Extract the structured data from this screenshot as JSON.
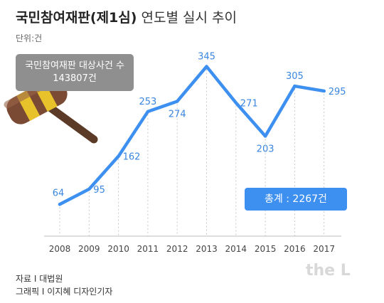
{
  "title": {
    "bold": "국민참여재판(제1심)",
    "light": "연도별 실시 추이"
  },
  "unit": "단위:건",
  "callout": {
    "line1": "국민참여재판 대상사건 수",
    "line2": "143807건"
  },
  "total": "총계 : 2267건",
  "source": {
    "line1": "자료 I 대법원",
    "line2": "그래픽 I 이지혜 디자인기자"
  },
  "watermark": "the L",
  "colors": {
    "line": "#3d8ff0",
    "label": "#3a86e0",
    "callout": "#8f8f8f"
  },
  "chart_data": {
    "type": "line",
    "categories": [
      "2008",
      "2009",
      "2010",
      "2011",
      "2012",
      "2013",
      "2014",
      "2015",
      "2016",
      "2017"
    ],
    "values": [
      64,
      95,
      162,
      253,
      274,
      345,
      271,
      203,
      305,
      295
    ],
    "labels": [
      "64",
      "95",
      "162",
      "253",
      "274",
      "345",
      "271",
      "203",
      "305",
      "295"
    ],
    "label_positions": [
      "above",
      "right",
      "right",
      "above",
      "below",
      "above",
      "right",
      "below",
      "above",
      "right"
    ],
    "title": "",
    "xlabel": "",
    "ylabel": "",
    "grid": "vertical dotted"
  }
}
